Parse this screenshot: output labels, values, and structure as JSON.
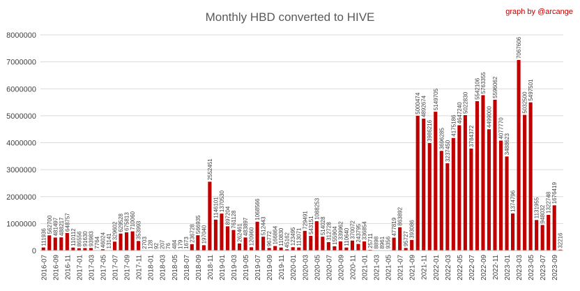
{
  "chart_data": {
    "type": "bar",
    "title": "Monthly HBD converted to  HIVE",
    "credit": "graph by @arcange",
    "bar_color": "#c00000",
    "grid_color": "#d9d9d9",
    "grid": true,
    "ylim": [
      0,
      8000000
    ],
    "yticks": [
      "0",
      "1000000",
      "2000000",
      "3000000",
      "4000000",
      "5000000",
      "6000000",
      "7000000",
      "8000000"
    ],
    "categories": [
      "2016-07",
      "2016-08",
      "2016-09",
      "2016-10",
      "2016-11",
      "2016-12",
      "2017-01",
      "2017-02",
      "2017-03",
      "2017-04",
      "2017-05",
      "2017-06",
      "2017-07",
      "2017-08",
      "2017-09",
      "2017-10",
      "2017-11",
      "2017-12",
      "2018-01",
      "2018-02",
      "2018-03",
      "2018-04",
      "2018-05",
      "2018-06",
      "2018-07",
      "2018-08",
      "2018-09",
      "2018-10",
      "2018-11",
      "2018-12",
      "2019-01",
      "2019-02",
      "2019-03",
      "2019-04",
      "2019-05",
      "2019-06",
      "2019-07",
      "2019-08",
      "2019-09",
      "2019-10",
      "2019-11",
      "2019-12",
      "2020-01",
      "2020-02",
      "2020-03",
      "2020-04",
      "2020-05",
      "2020-06",
      "2020-07",
      "2020-08",
      "2020-09",
      "2020-10",
      "2020-11",
      "2020-12",
      "2021-01",
      "2021-02",
      "2021-03",
      "2021-04",
      "2021-05",
      "2021-06",
      "2021-07",
      "2021-08",
      "2021-09",
      "2021-10",
      "2021-11",
      "2021-12",
      "2022-01",
      "2022-02",
      "2022-03",
      "2022-04",
      "2022-05",
      "2022-06",
      "2022-07",
      "2022-08",
      "2022-09",
      "2022-10",
      "2022-11",
      "2022-12",
      "2023-01",
      "2023-02",
      "2023-03",
      "2023-04",
      "2023-05",
      "2023-06",
      "2023-07",
      "2023-08",
      "2023-09",
      "2023-10"
    ],
    "xtick_labels": [
      "2016-07",
      "2016-09",
      "2016-11",
      "2017-01",
      "2017-03",
      "2017-05",
      "2017-07",
      "2017-09",
      "2017-11",
      "2018-01",
      "2018-03",
      "2018-05",
      "2018-07",
      "2018-09",
      "2018-11",
      "2019-01",
      "2019-03",
      "2019-05",
      "2019-07",
      "2019-09",
      "2019-11",
      "2020-01",
      "2020-03",
      "2020-05",
      "2020-07",
      "2020-09",
      "2020-11",
      "2021-01",
      "2021-03",
      "2021-05",
      "2021-07",
      "2021-09",
      "2021-11",
      "2022-01",
      "2022-03",
      "2022-05",
      "2022-07",
      "2022-09",
      "2022-11",
      "2023-01",
      "2023-03",
      "2023-05",
      "2023-07",
      "2023-09"
    ],
    "values": [
      111936,
      562700,
      481497,
      488217,
      648757,
      110112,
      86556,
      91630,
      93983,
      7764,
      46024,
      13141,
      329602,
      629528,
      675813,
      710060,
      353993,
      2703,
      128,
      92,
      207,
      76,
      484,
      179,
      1673,
      236728,
      566935,
      197040,
      2552451,
      1146101,
      1370530,
      897204,
      761128,
      262461,
      483897,
      120960,
      1068566,
      512443,
      96772,
      166864,
      110830,
      45162,
      123495,
      113071,
      729491,
      543151,
      1088253,
      514028,
      312728,
      155904,
      339962,
      110640,
      370072,
      243795,
      336854,
      25711,
      8898,
      8961,
      9356,
      477819,
      863892,
      95727,
      393086,
      5000474,
      4892674,
      3986216,
      5149705,
      3696285,
      3237450,
      4175186,
      4647240,
      5022830,
      3784372,
      5542106,
      5763355,
      4499000,
      5596062,
      4077770,
      3488623,
      1374796,
      7067606,
      5032500,
      5497501,
      1131955,
      948032,
      1322748,
      1676419,
      32216
    ]
  }
}
